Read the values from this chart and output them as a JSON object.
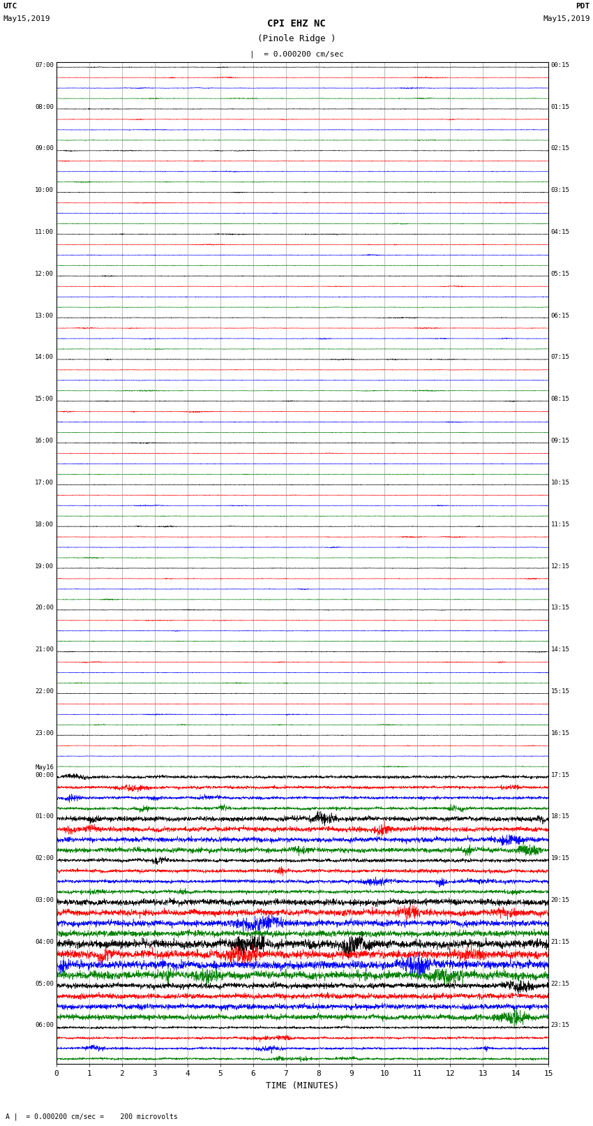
{
  "title_line1": "CPI EHZ NC",
  "title_line2": "(Pinole Ridge )",
  "scale_text": "= 0.000200 cm/sec",
  "left_label": "UTC\nMay15,2019",
  "right_label": "PDT\nMay15,2019",
  "bottom_label": "A |  = 0.000200 cm/sec =    200 microvolts",
  "xlabel": "TIME (MINUTES)",
  "utc_times": [
    "07:00",
    "08:00",
    "09:00",
    "10:00",
    "11:00",
    "12:00",
    "13:00",
    "14:00",
    "15:00",
    "16:00",
    "17:00",
    "18:00",
    "19:00",
    "20:00",
    "21:00",
    "22:00",
    "23:00",
    "May16\n00:00",
    "01:00",
    "02:00",
    "03:00",
    "04:00",
    "05:00",
    "06:00"
  ],
  "pdt_times": [
    "00:15",
    "01:15",
    "02:15",
    "03:15",
    "04:15",
    "05:15",
    "06:15",
    "07:15",
    "08:15",
    "09:15",
    "10:15",
    "11:15",
    "12:15",
    "13:15",
    "14:15",
    "15:15",
    "16:15",
    "17:15",
    "18:15",
    "19:15",
    "20:15",
    "21:15",
    "22:15",
    "23:15"
  ],
  "trace_colors": [
    "black",
    "red",
    "blue",
    "green"
  ],
  "n_rows": 24,
  "traces_per_row": 4,
  "fig_width": 8.5,
  "fig_height": 16.13,
  "bg_color": "white",
  "grid_color": "#888888",
  "x_ticks": [
    0,
    1,
    2,
    3,
    4,
    5,
    6,
    7,
    8,
    9,
    10,
    11,
    12,
    13,
    14,
    15
  ],
  "xmin": 0,
  "xmax": 15,
  "noise_scales": [
    0.025,
    0.025,
    0.025,
    0.025,
    0.025,
    0.025,
    0.025,
    0.025,
    0.025,
    0.025,
    0.025,
    0.025,
    0.025,
    0.025,
    0.025,
    0.025,
    0.025,
    0.15,
    0.25,
    0.18,
    0.32,
    0.42,
    0.28,
    0.12
  ]
}
